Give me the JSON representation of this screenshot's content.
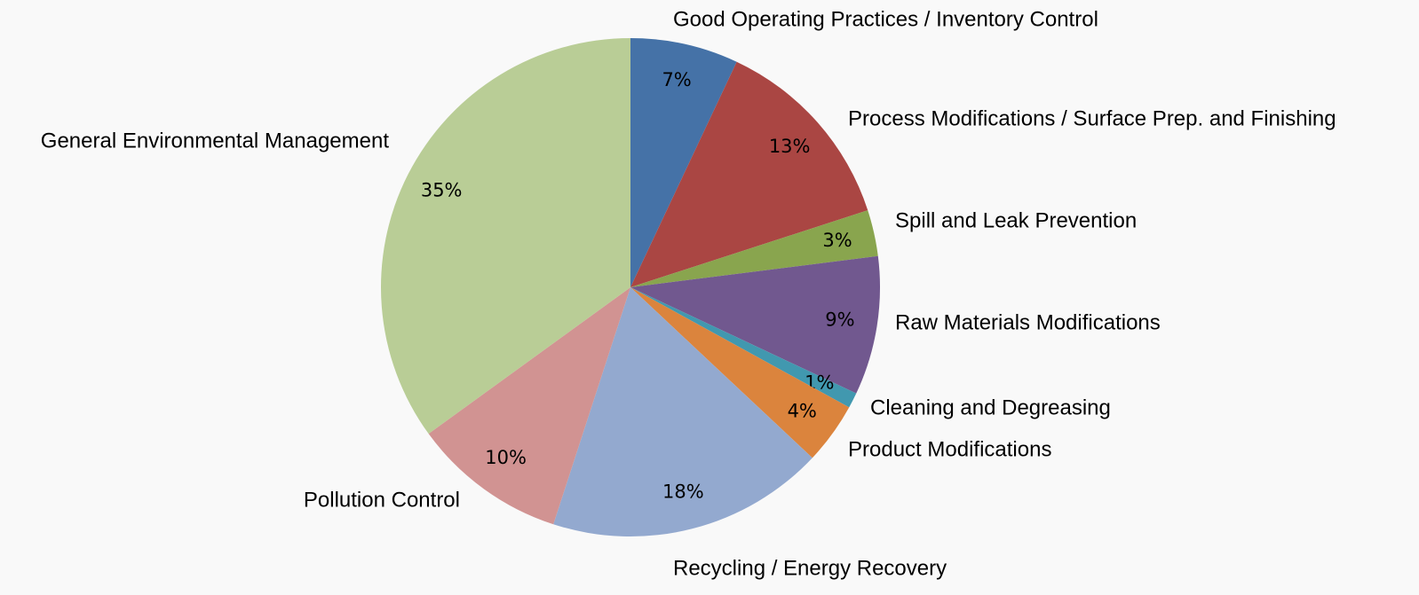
{
  "chart_data": {
    "type": "pie",
    "categories": [
      "Good Operating Practices / Inventory Control",
      "Process Modifications / Surface Prep. and Finishing",
      "Spill and Leak Prevention",
      "Raw Materials Modifications",
      "Cleaning and Degreasing",
      "Product Modifications",
      "Recycling / Energy Recovery",
      "Pollution Control",
      "General Environmental Management"
    ],
    "values": [
      7,
      13,
      3,
      9,
      1,
      4,
      18,
      10,
      35
    ],
    "value_labels": [
      "7%",
      "13%",
      "3%",
      "9%",
      "1%",
      "4%",
      "18%",
      "10%",
      "35%"
    ],
    "colors": [
      "#4572a7",
      "#aa4643",
      "#89a54e",
      "#71588f",
      "#4198af",
      "#db843d",
      "#93a9cf",
      "#d19392",
      "#b9cd96"
    ]
  }
}
